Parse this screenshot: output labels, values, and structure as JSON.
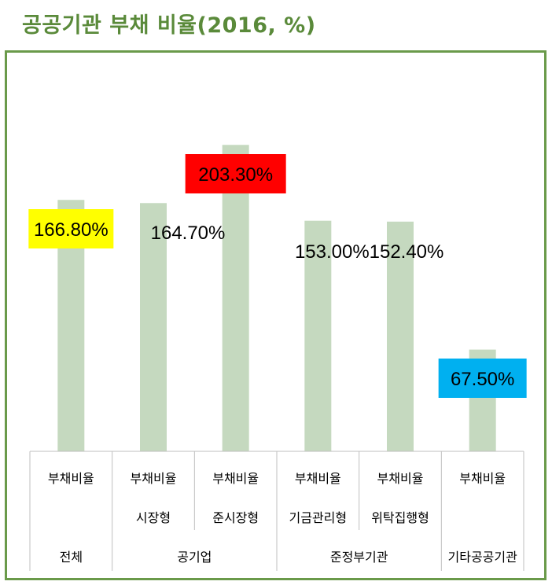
{
  "title": "공공기관 부채 비율(2016, %)",
  "chart_data": {
    "type": "bar",
    "series_label": "부채비율",
    "values": [
      166.8,
      164.7,
      203.3,
      153.0,
      152.4,
      67.5
    ],
    "value_labels": [
      "166.80%",
      "164.70%",
      "203.30%",
      "153.00%",
      "152.40%",
      "67.50%"
    ],
    "subcategories": [
      "",
      "시장형",
      "준시장형",
      "기금관리형",
      "위탁집행형",
      ""
    ],
    "groups": [
      {
        "label": "전체",
        "span": 1
      },
      {
        "label": "공기업",
        "span": 2
      },
      {
        "label": "준정부기관",
        "span": 2
      },
      {
        "label": "기타공공기관",
        "span": 1
      }
    ],
    "label_backgrounds": [
      "#ffff00",
      "",
      "#ff0000",
      "",
      "",
      "#00b0f0"
    ],
    "bar_color": "#c5d9bf",
    "axis_color": "#bfbfbf"
  }
}
